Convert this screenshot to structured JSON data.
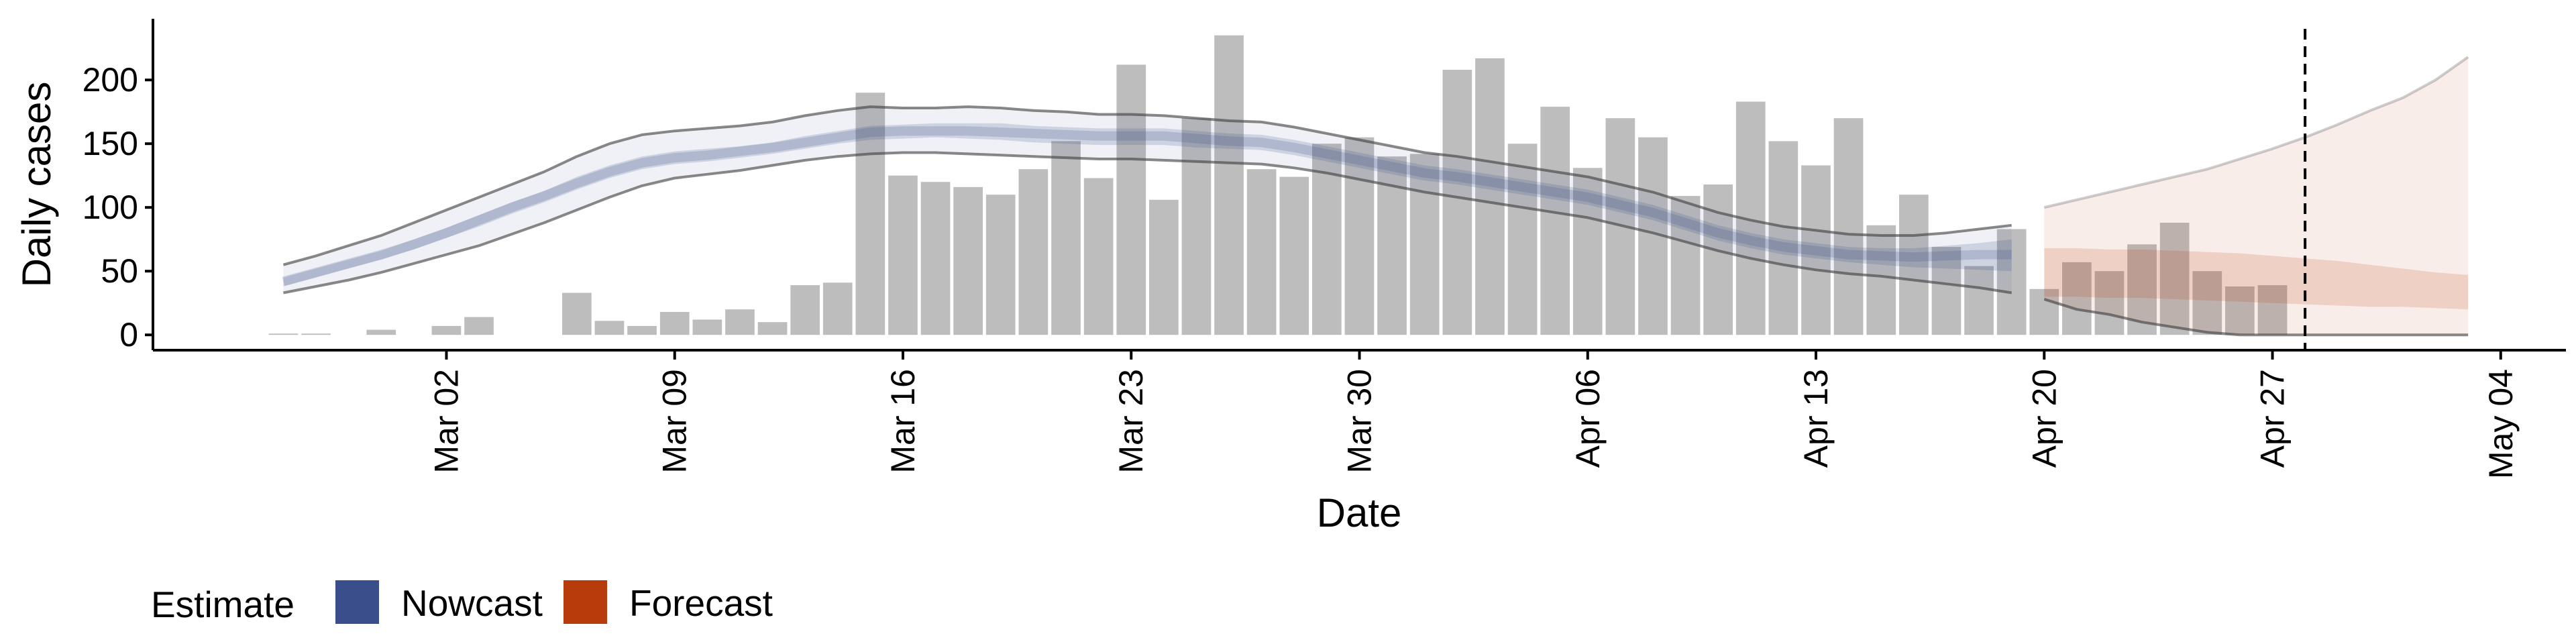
{
  "chart_data": {
    "type": "bar",
    "title": "",
    "xlabel": "Date",
    "ylabel": "Daily cases",
    "x_ticks": [
      {
        "date": "2020-03-02",
        "label": "Mar 02"
      },
      {
        "date": "2020-03-09",
        "label": "Mar 09"
      },
      {
        "date": "2020-03-16",
        "label": "Mar 16"
      },
      {
        "date": "2020-03-23",
        "label": "Mar 23"
      },
      {
        "date": "2020-03-30",
        "label": "Mar 30"
      },
      {
        "date": "2020-04-06",
        "label": "Apr 06"
      },
      {
        "date": "2020-04-13",
        "label": "Apr 13"
      },
      {
        "date": "2020-04-20",
        "label": "Apr 20"
      },
      {
        "date": "2020-04-27",
        "label": "Apr 27"
      },
      {
        "date": "2020-05-04",
        "label": "May 04"
      }
    ],
    "xlim": [
      "2020-02-22",
      "2020-05-06"
    ],
    "y_ticks": [
      0,
      50,
      100,
      150,
      200
    ],
    "ylim": [
      -12,
      248
    ],
    "grid": false,
    "vline_date": "2020-04-28",
    "legend": {
      "title": "Estimate",
      "position": "bottom-left",
      "entries": [
        {
          "label": "Nowcast",
          "color": "#3a4e8c"
        },
        {
          "label": "Forecast",
          "color": "#b83b0c"
        }
      ]
    },
    "bar_color": "#bdbdbd",
    "bars": {
      "dates": [
        "2020-02-26",
        "2020-02-27",
        "2020-02-28",
        "2020-02-29",
        "2020-03-01",
        "2020-03-02",
        "2020-03-03",
        "2020-03-04",
        "2020-03-05",
        "2020-03-06",
        "2020-03-07",
        "2020-03-08",
        "2020-03-09",
        "2020-03-10",
        "2020-03-11",
        "2020-03-12",
        "2020-03-13",
        "2020-03-14",
        "2020-03-15",
        "2020-03-16",
        "2020-03-17",
        "2020-03-18",
        "2020-03-19",
        "2020-03-20",
        "2020-03-21",
        "2020-03-22",
        "2020-03-23",
        "2020-03-24",
        "2020-03-25",
        "2020-03-26",
        "2020-03-27",
        "2020-03-28",
        "2020-03-29",
        "2020-03-30",
        "2020-03-31",
        "2020-04-01",
        "2020-04-02",
        "2020-04-03",
        "2020-04-04",
        "2020-04-05",
        "2020-04-06",
        "2020-04-07",
        "2020-04-08",
        "2020-04-09",
        "2020-04-10",
        "2020-04-11",
        "2020-04-12",
        "2020-04-13",
        "2020-04-14",
        "2020-04-15",
        "2020-04-16",
        "2020-04-17",
        "2020-04-18",
        "2020-04-19",
        "2020-04-20",
        "2020-04-21",
        "2020-04-22",
        "2020-04-23",
        "2020-04-24",
        "2020-04-25",
        "2020-04-26",
        "2020-04-27",
        "2020-04-28"
      ],
      "values": [
        1,
        1,
        0,
        4,
        0,
        7,
        14,
        0,
        0,
        33,
        11,
        7,
        18,
        12,
        20,
        10,
        39,
        41,
        190,
        125,
        120,
        116,
        110,
        130,
        152,
        123,
        212,
        106,
        170,
        235,
        130,
        124,
        150,
        155,
        140,
        142,
        208,
        217,
        150,
        179,
        131,
        170,
        155,
        109,
        118,
        183,
        152,
        133,
        170,
        86,
        110,
        69,
        54,
        83,
        36,
        57,
        50,
        71,
        88,
        50,
        38,
        39,
        0
      ]
    },
    "nowcast": {
      "color": "#3a4e8c",
      "dates": [
        "2020-02-26",
        "2020-02-27",
        "2020-02-28",
        "2020-02-29",
        "2020-03-01",
        "2020-03-02",
        "2020-03-03",
        "2020-03-04",
        "2020-03-05",
        "2020-03-06",
        "2020-03-07",
        "2020-03-08",
        "2020-03-09",
        "2020-03-10",
        "2020-03-11",
        "2020-03-12",
        "2020-03-13",
        "2020-03-14",
        "2020-03-15",
        "2020-03-16",
        "2020-03-17",
        "2020-03-18",
        "2020-03-19",
        "2020-03-20",
        "2020-03-21",
        "2020-03-22",
        "2020-03-23",
        "2020-03-24",
        "2020-03-25",
        "2020-03-26",
        "2020-03-27",
        "2020-03-28",
        "2020-03-29",
        "2020-03-30",
        "2020-03-31",
        "2020-04-01",
        "2020-04-02",
        "2020-04-03",
        "2020-04-04",
        "2020-04-05",
        "2020-04-06",
        "2020-04-07",
        "2020-04-08",
        "2020-04-09",
        "2020-04-10",
        "2020-04-11",
        "2020-04-12",
        "2020-04-13",
        "2020-04-14",
        "2020-04-15",
        "2020-04-16",
        "2020-04-17",
        "2020-04-18",
        "2020-04-19"
      ],
      "upper90": [
        55,
        62,
        70,
        78,
        88,
        98,
        108,
        118,
        128,
        140,
        150,
        157,
        160,
        162,
        164,
        167,
        172,
        176,
        179,
        178,
        178,
        179,
        178,
        176,
        175,
        173,
        173,
        172,
        170,
        168,
        167,
        163,
        158,
        153,
        148,
        143,
        140,
        136,
        132,
        128,
        124,
        118,
        112,
        104,
        96,
        90,
        85,
        82,
        79,
        78,
        78,
        80,
        83,
        86
      ],
      "upper50": [
        45,
        52,
        59,
        66,
        75,
        84,
        94,
        104,
        113,
        124,
        133,
        140,
        144,
        146,
        148,
        151,
        156,
        160,
        164,
        165,
        166,
        166,
        166,
        164,
        163,
        162,
        162,
        162,
        160,
        158,
        157,
        153,
        148,
        143,
        138,
        133,
        130,
        126,
        122,
        118,
        114,
        108,
        102,
        94,
        86,
        80,
        75,
        72,
        69,
        68,
        68,
        70,
        72,
        75
      ],
      "median": [
        42,
        49,
        56,
        63,
        71,
        80,
        90,
        100,
        109,
        119,
        128,
        135,
        139,
        141,
        144,
        147,
        151,
        155,
        159,
        160,
        160,
        160,
        159,
        158,
        157,
        156,
        156,
        156,
        154,
        152,
        151,
        147,
        142,
        137,
        132,
        127,
        124,
        120,
        116,
        112,
        108,
        102,
        96,
        88,
        80,
        74,
        69,
        66,
        63,
        62,
        61,
        62,
        63,
        63
      ],
      "lower50": [
        38,
        45,
        52,
        59,
        67,
        76,
        85,
        95,
        104,
        114,
        123,
        130,
        134,
        136,
        139,
        142,
        146,
        150,
        153,
        154,
        155,
        154,
        153,
        151,
        150,
        149,
        149,
        149,
        147,
        146,
        145,
        141,
        136,
        131,
        126,
        121,
        118,
        114,
        110,
        106,
        102,
        96,
        90,
        82,
        74,
        68,
        63,
        60,
        57,
        55,
        53,
        52,
        51,
        50
      ],
      "lower90": [
        33,
        38,
        43,
        49,
        56,
        63,
        70,
        79,
        88,
        98,
        108,
        117,
        123,
        126,
        129,
        133,
        137,
        140,
        142,
        143,
        143,
        142,
        141,
        140,
        139,
        138,
        138,
        137,
        136,
        135,
        134,
        131,
        127,
        122,
        117,
        112,
        108,
        104,
        100,
        96,
        92,
        86,
        80,
        73,
        66,
        60,
        55,
        51,
        48,
        46,
        43,
        40,
        37,
        33
      ]
    },
    "forecast": {
      "color": "#b83b0c",
      "dates": [
        "2020-04-20",
        "2020-04-21",
        "2020-04-22",
        "2020-04-23",
        "2020-04-24",
        "2020-04-25",
        "2020-04-26",
        "2020-04-27",
        "2020-04-28",
        "2020-04-29",
        "2020-04-30",
        "2020-05-01",
        "2020-05-02",
        "2020-05-03"
      ],
      "upper90": [
        100,
        106,
        112,
        118,
        124,
        130,
        138,
        146,
        155,
        165,
        176,
        186,
        200,
        218
      ],
      "upper50": [
        68,
        68,
        67,
        67,
        66,
        65,
        64,
        62,
        60,
        58,
        55,
        52,
        49,
        47
      ],
      "median": [
        48,
        48,
        47,
        47,
        46,
        45,
        44,
        42,
        40,
        38,
        37,
        35,
        34,
        33
      ],
      "lower50": [
        30,
        30,
        29,
        29,
        28,
        27,
        26,
        25,
        24,
        23,
        22,
        22,
        21,
        20
      ],
      "lower90": [
        28,
        20,
        16,
        10,
        6,
        2,
        0,
        0,
        0,
        0,
        0,
        0,
        0,
        0
      ]
    }
  }
}
